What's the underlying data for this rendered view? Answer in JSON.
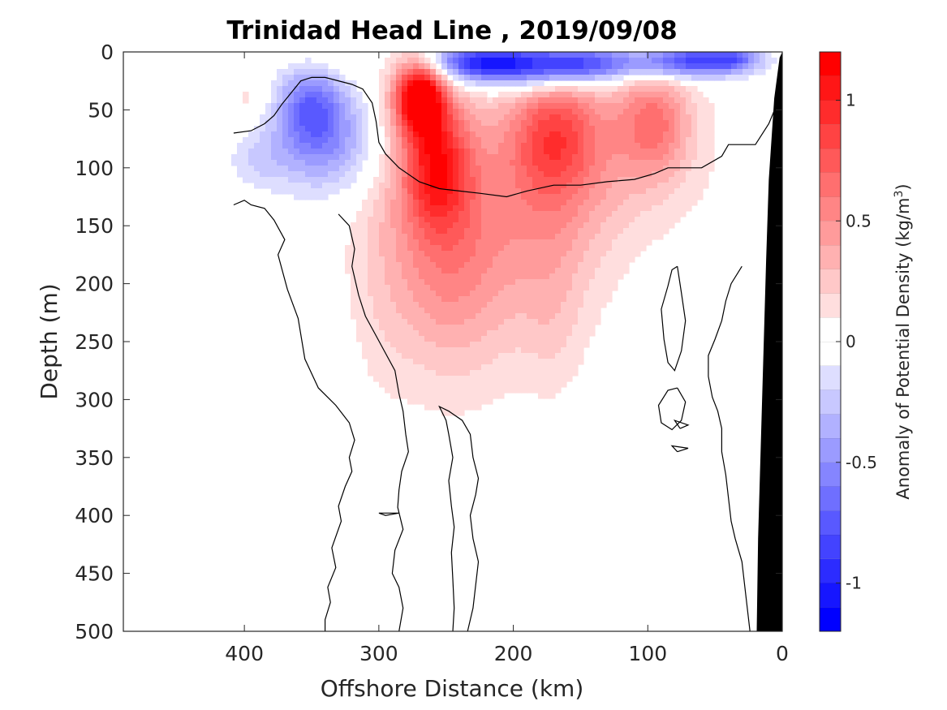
{
  "chart_data": {
    "type": "heatmap",
    "title": "Trinidad Head Line , 2019/09/08",
    "xlabel": "Offshore Distance (km)",
    "ylabel": "Depth (m)",
    "xlim": [
      490,
      0
    ],
    "ylim": [
      500,
      0
    ],
    "xticks": [
      "400",
      "300",
      "200",
      "100",
      "0"
    ],
    "yticks": [
      "0",
      "50",
      "100",
      "150",
      "200",
      "250",
      "300",
      "350",
      "400",
      "450",
      "500"
    ],
    "colorbar": {
      "label_main": "Anomaly of Potential Density (kg/m",
      "label_sup": "3",
      "label_end": ")",
      "clim": [
        -1.2,
        1.2
      ],
      "levels": 24,
      "ticks": [
        {
          "value": 1,
          "label": "1"
        },
        {
          "value": 0.5,
          "label": "0.5"
        },
        {
          "value": 0,
          "label": "0"
        },
        {
          "value": -0.5,
          "label": "-0.5"
        },
        {
          "value": -1,
          "label": "-1"
        }
      ]
    },
    "colors": {
      "positive": "#ff0000",
      "negative": "#0000ff",
      "neutral": "#ffffff",
      "bathymetry": "#000000"
    },
    "anomaly_features": [
      {
        "x": 270,
        "depth": 38,
        "sx": 13,
        "sz": 22,
        "amp": 1.25
      },
      {
        "x": 258,
        "depth": 95,
        "sx": 18,
        "sz": 38,
        "amp": 0.75
      },
      {
        "x": 250,
        "depth": 160,
        "sx": 30,
        "sz": 70,
        "amp": 0.4
      },
      {
        "x": 240,
        "depth": 215,
        "sx": 40,
        "sz": 70,
        "amp": 0.15
      },
      {
        "x": 170,
        "depth": 70,
        "sx": 22,
        "sz": 35,
        "amp": 0.45
      },
      {
        "x": 175,
        "depth": 140,
        "sx": 30,
        "sz": 70,
        "amp": 0.3
      },
      {
        "x": 95,
        "depth": 60,
        "sx": 18,
        "sz": 32,
        "amp": 0.45
      },
      {
        "x": 130,
        "depth": 80,
        "sx": 50,
        "sz": 50,
        "amp": 0.25
      },
      {
        "x": 200,
        "depth": 110,
        "sx": 80,
        "sz": 80,
        "amp": 0.12
      },
      {
        "x": 170,
        "depth": 245,
        "sx": 15,
        "sz": 45,
        "amp": 0.1
      },
      {
        "x": 300,
        "depth": 180,
        "sx": 18,
        "sz": 90,
        "amp": 0.1
      },
      {
        "x": 395,
        "depth": 40,
        "sx": 12,
        "sz": 12,
        "amp": 0.15
      },
      {
        "x": 340,
        "depth": 10,
        "sx": 25,
        "sz": 12,
        "amp": 0.1
      },
      {
        "x": 350,
        "depth": 45,
        "sx": 18,
        "sz": 25,
        "amp": -0.55
      },
      {
        "x": 340,
        "depth": 80,
        "sx": 30,
        "sz": 30,
        "amp": -0.45
      },
      {
        "x": 390,
        "depth": 95,
        "sx": 15,
        "sz": 15,
        "amp": -0.15
      },
      {
        "x": 190,
        "depth": 12,
        "sx": 40,
        "sz": 14,
        "amp": -0.9
      },
      {
        "x": 230,
        "depth": 8,
        "sx": 25,
        "sz": 10,
        "amp": -0.55
      },
      {
        "x": 140,
        "depth": 10,
        "sx": 30,
        "sz": 10,
        "amp": -0.55
      },
      {
        "x": 70,
        "depth": 8,
        "sx": 25,
        "sz": 10,
        "amp": -0.85
      },
      {
        "x": 35,
        "depth": 6,
        "sx": 15,
        "sz": 8,
        "amp": -0.5
      }
    ],
    "zero_contours": [
      [
        [
          408,
          70
        ],
        [
          395,
          68
        ],
        [
          385,
          62
        ],
        [
          378,
          55
        ],
        [
          372,
          45
        ],
        [
          365,
          35
        ],
        [
          358,
          25
        ],
        [
          350,
          22
        ],
        [
          340,
          22
        ],
        [
          320,
          28
        ],
        [
          312,
          32
        ],
        [
          305,
          44
        ],
        [
          302,
          60
        ],
        [
          300,
          78
        ],
        [
          295,
          88
        ],
        [
          285,
          100
        ],
        [
          270,
          112
        ],
        [
          255,
          118
        ],
        [
          240,
          120
        ],
        [
          225,
          122
        ],
        [
          205,
          125
        ],
        [
          190,
          120
        ],
        [
          170,
          115
        ],
        [
          150,
          115
        ],
        [
          130,
          112
        ],
        [
          110,
          110
        ],
        [
          95,
          105
        ],
        [
          85,
          100
        ],
        [
          75,
          100
        ],
        [
          60,
          100
        ],
        [
          45,
          90
        ],
        [
          40,
          80
        ],
        [
          20,
          80
        ],
        [
          10,
          62
        ],
        [
          5,
          48
        ]
      ],
      [
        [
          408,
          132
        ],
        [
          400,
          128
        ],
        [
          395,
          132
        ],
        [
          385,
          135
        ],
        [
          378,
          145
        ],
        [
          370,
          162
        ],
        [
          375,
          175
        ],
        [
          368,
          205
        ],
        [
          360,
          230
        ],
        [
          355,
          265
        ],
        [
          345,
          290
        ],
        [
          332,
          305
        ],
        [
          322,
          320
        ],
        [
          318,
          335
        ],
        [
          322,
          350
        ],
        [
          320,
          362
        ],
        [
          325,
          375
        ],
        [
          330,
          392
        ],
        [
          328,
          405
        ],
        [
          335,
          428
        ],
        [
          332,
          445
        ],
        [
          338,
          462
        ],
        [
          336,
          475
        ],
        [
          340,
          490
        ],
        [
          340,
          500
        ]
      ],
      [
        [
          330,
          140
        ],
        [
          322,
          150
        ],
        [
          318,
          170
        ],
        [
          320,
          185
        ],
        [
          315,
          210
        ],
        [
          310,
          228
        ],
        [
          302,
          245
        ],
        [
          296,
          258
        ],
        [
          288,
          275
        ],
        [
          285,
          295
        ],
        [
          282,
          310
        ],
        [
          280,
          330
        ],
        [
          278,
          345
        ],
        [
          283,
          362
        ],
        [
          285,
          378
        ],
        [
          286,
          393
        ],
        [
          282,
          412
        ],
        [
          288,
          430
        ],
        [
          290,
          450
        ],
        [
          285,
          462
        ],
        [
          282,
          480
        ],
        [
          285,
          500
        ]
      ],
      [
        [
          234,
          500
        ],
        [
          230,
          480
        ],
        [
          228,
          460
        ],
        [
          226,
          440
        ],
        [
          230,
          420
        ],
        [
          232,
          400
        ],
        [
          228,
          382
        ],
        [
          226,
          368
        ],
        [
          230,
          350
        ],
        [
          232,
          330
        ],
        [
          238,
          318
        ],
        [
          248,
          310
        ],
        [
          255,
          306
        ],
        [
          250,
          318
        ],
        [
          248,
          330
        ],
        [
          245,
          350
        ],
        [
          248,
          370
        ],
        [
          246,
          392
        ],
        [
          244,
          410
        ],
        [
          246,
          432
        ],
        [
          245,
          455
        ],
        [
          244,
          480
        ],
        [
          245,
          500
        ]
      ],
      [
        [
          78,
          185
        ],
        [
          75,
          208
        ],
        [
          72,
          232
        ],
        [
          75,
          258
        ],
        [
          80,
          275
        ],
        [
          85,
          268
        ],
        [
          88,
          248
        ],
        [
          90,
          222
        ],
        [
          85,
          202
        ],
        [
          82,
          188
        ],
        [
          78,
          185
        ]
      ],
      [
        [
          78,
          290
        ],
        [
          72,
          302
        ],
        [
          75,
          318
        ],
        [
          82,
          326
        ],
        [
          90,
          320
        ],
        [
          92,
          305
        ],
        [
          85,
          292
        ],
        [
          78,
          290
        ]
      ],
      [
        [
          24,
          500
        ],
        [
          26,
          480
        ],
        [
          28,
          460
        ],
        [
          30,
          440
        ],
        [
          35,
          420
        ],
        [
          38,
          405
        ],
        [
          40,
          385
        ],
        [
          42,
          365
        ],
        [
          45,
          345
        ],
        [
          45,
          325
        ],
        [
          48,
          310
        ],
        [
          52,
          298
        ],
        [
          55,
          280
        ],
        [
          55,
          262
        ],
        [
          50,
          248
        ],
        [
          45,
          232
        ],
        [
          42,
          215
        ],
        [
          38,
          200
        ],
        [
          30,
          185
        ]
      ],
      [
        [
          76,
          325
        ],
        [
          70,
          322
        ],
        [
          80,
          318
        ],
        [
          76,
          325
        ]
      ],
      [
        [
          78,
          345
        ],
        [
          70,
          342
        ],
        [
          82,
          340
        ],
        [
          78,
          345
        ]
      ],
      [
        [
          300,
          398
        ],
        [
          285,
          398
        ],
        [
          295,
          400
        ],
        [
          300,
          398
        ]
      ]
    ],
    "bathymetry": [
      [
        19,
        500
      ],
      [
        18,
        420
      ],
      [
        16,
        340
      ],
      [
        14,
        260
      ],
      [
        12,
        180
      ],
      [
        10,
        110
      ],
      [
        6,
        40
      ],
      [
        2,
        5
      ],
      [
        0,
        0
      ],
      [
        0,
        500
      ]
    ]
  }
}
